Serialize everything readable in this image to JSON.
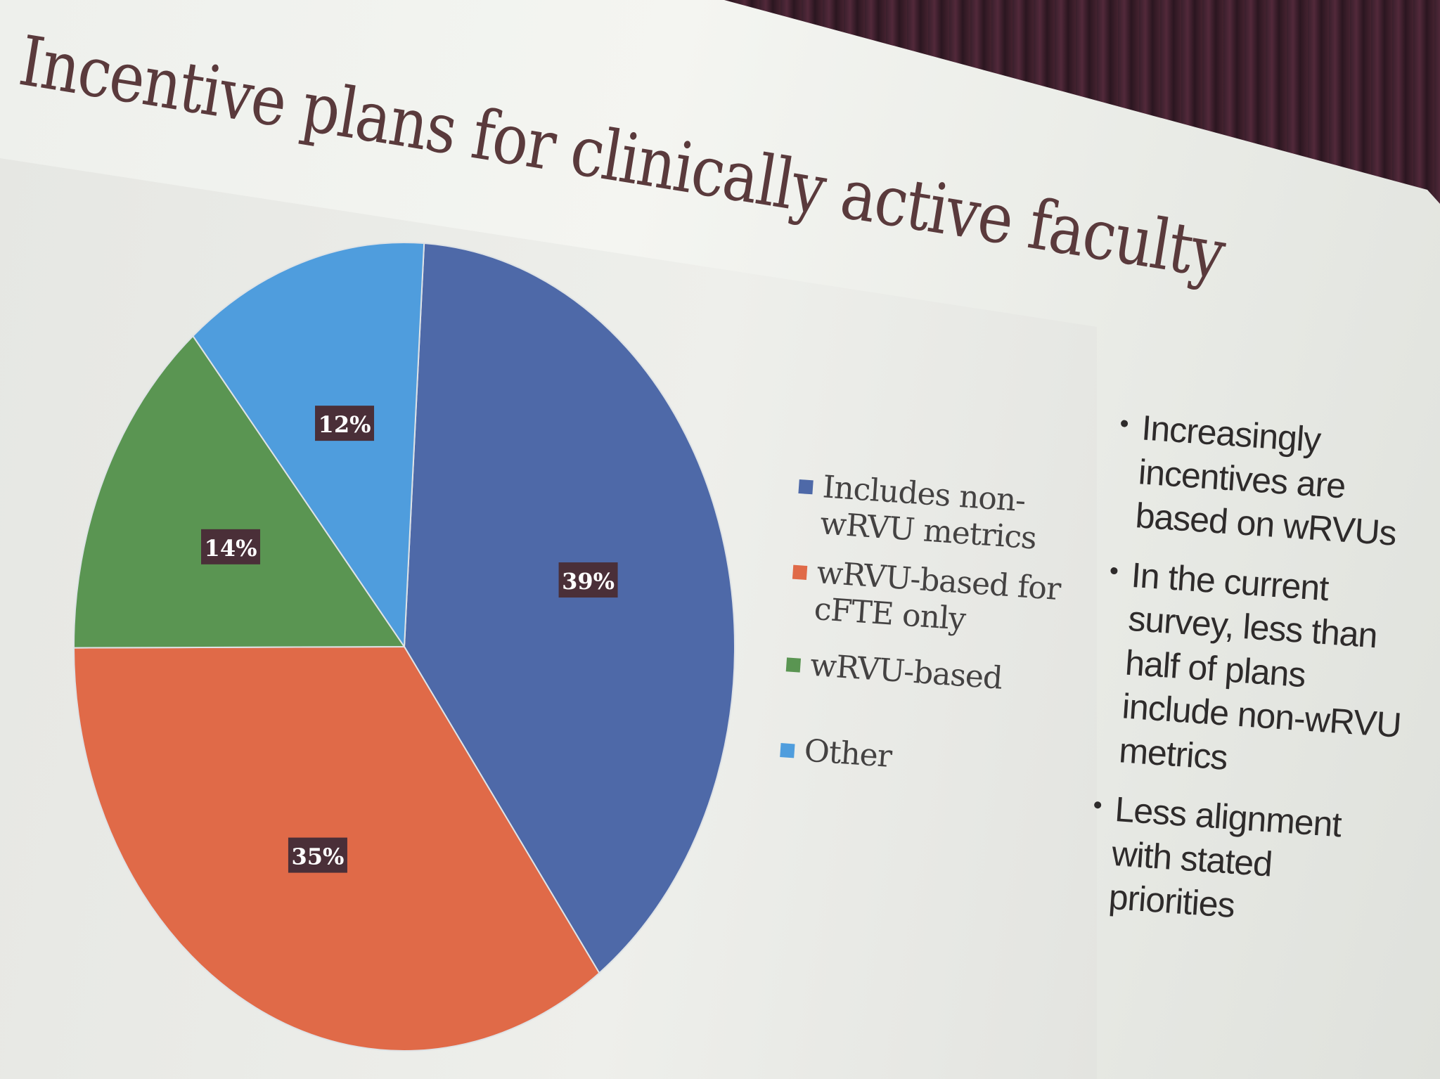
{
  "slide": {
    "title": "Incentive plans for clinically active faculty"
  },
  "chart_data": {
    "type": "pie",
    "categories": [
      "Includes non-wRVU metrics",
      "wRVU-based for cFTE only",
      "wRVU-based",
      "Other"
    ],
    "values": [
      39,
      35,
      14,
      12
    ],
    "labels": [
      "39%",
      "35%",
      "14%",
      "12%"
    ],
    "colors": [
      "#4e69a8",
      "#e06a48",
      "#5a9552",
      "#4f9ddd"
    ],
    "legend": "right"
  },
  "legend": {
    "items": [
      {
        "label": "Includes non-wRVU metrics",
        "color": "#4e69a8"
      },
      {
        "label": "wRVU-based for cFTE only",
        "color": "#e06a48"
      },
      {
        "label": "wRVU-based",
        "color": "#5a9552"
      },
      {
        "label": "Other",
        "color": "#4f9ddd"
      }
    ]
  },
  "bullets": [
    "Increasingly incentives are based on wRVUs",
    "In the current survey, less than half of plans include non-wRVU metrics",
    "Less alignment with stated priorities"
  ]
}
